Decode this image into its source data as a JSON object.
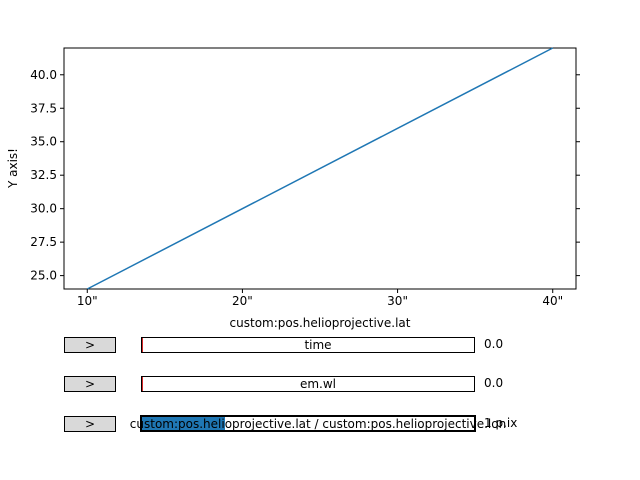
{
  "chart_data": {
    "type": "line",
    "xlabel": "custom:pos.helioprojective.lat",
    "ylabel": "Y axis!",
    "xticks": [
      "10\"",
      "20\"",
      "30\"",
      "40\""
    ],
    "xtick_values": [
      10,
      20,
      30,
      40
    ],
    "yticks": [
      "25.0",
      "27.5",
      "30.0",
      "32.5",
      "35.0",
      "37.5",
      "40.0"
    ],
    "ytick_values": [
      25.0,
      27.5,
      30.0,
      32.5,
      35.0,
      37.5,
      40.0
    ],
    "xlim": [
      8.5,
      41.5
    ],
    "ylim": [
      24.0,
      42.0
    ],
    "grid": false,
    "series": [
      {
        "x": [
          10,
          40
        ],
        "y": [
          24.0,
          42.0
        ],
        "color": "#1f77b4"
      }
    ]
  },
  "controls": [
    {
      "button": ">",
      "label": "time",
      "value": "0.0",
      "fill": 0.0,
      "selected": false
    },
    {
      "button": ">",
      "label": "em.wl",
      "value": "0.0",
      "fill": 0.0,
      "selected": false
    },
    {
      "button": ">",
      "label": "custom:pos.helioprojective.lat / custom:pos.helioprojective.lon",
      "value": "1 p.ix",
      "fill": 0.25,
      "selected": true
    }
  ],
  "colors": {
    "line": "#1f77b4",
    "fill": "#1f77b4",
    "button": "#d9d9d9"
  }
}
